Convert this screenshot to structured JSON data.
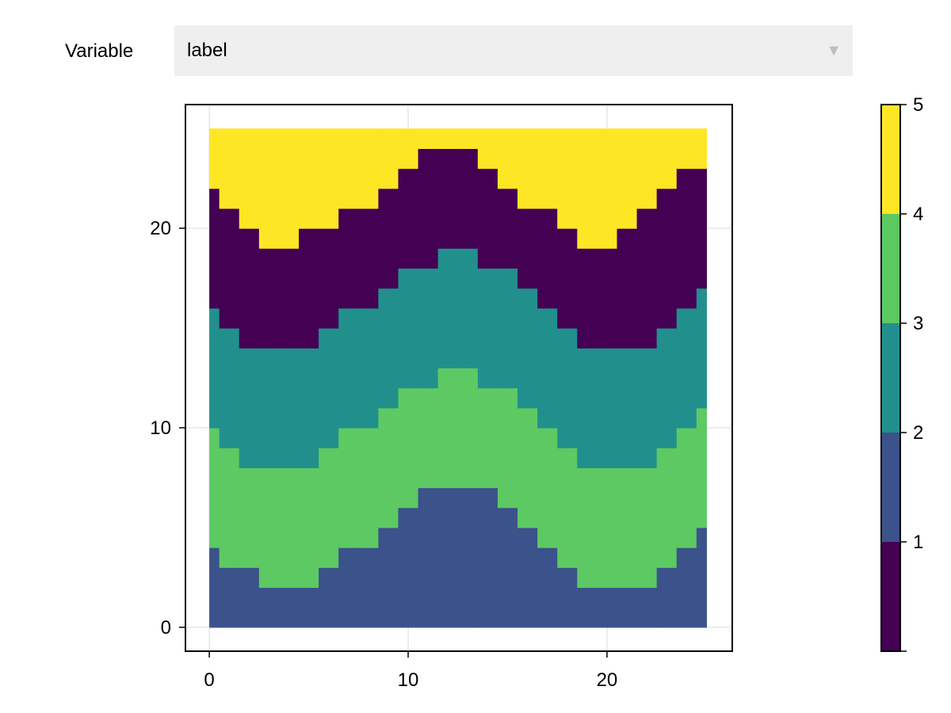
{
  "control": {
    "label": "Variable",
    "selected": "label",
    "arrow_icon": "▼"
  },
  "chart_data": {
    "type": "heatmap",
    "title": "",
    "xlabel": "",
    "ylabel": "",
    "xlim": [
      -1.2,
      26.3
    ],
    "ylim": [
      -1.2,
      26.2
    ],
    "xticks": [
      0,
      10,
      20
    ],
    "yticks": [
      0,
      10,
      20
    ],
    "grid": true,
    "x_extent": [
      0,
      25
    ],
    "y_extent": [
      0,
      25
    ],
    "boundaries": [
      {
        "label_below": 2,
        "label_above": 4,
        "values": [
          4,
          3,
          3,
          2,
          2,
          2,
          3,
          4,
          4,
          5,
          6,
          7,
          7,
          7,
          7,
          6,
          5,
          4,
          3,
          2,
          2,
          2,
          2,
          3,
          4,
          5
        ]
      },
      {
        "label_below": 4,
        "label_above": 3,
        "values": [
          10,
          9,
          8,
          8,
          8,
          8,
          9,
          10,
          10,
          11,
          12,
          12,
          13,
          13,
          12,
          12,
          11,
          10,
          9,
          8,
          8,
          8,
          8,
          9,
          10,
          11
        ]
      },
      {
        "label_below": 3,
        "label_above": 1,
        "values": [
          16,
          15,
          14,
          14,
          14,
          14,
          15,
          16,
          16,
          17,
          18,
          18,
          19,
          19,
          18,
          18,
          17,
          16,
          15,
          14,
          14,
          14,
          14,
          15,
          16,
          17
        ]
      },
      {
        "label_below": 1,
        "label_above": 5,
        "values": [
          22,
          21,
          20,
          19,
          19,
          20,
          20,
          21,
          21,
          22,
          23,
          24,
          24,
          24,
          23,
          22,
          21,
          21,
          20,
          19,
          19,
          20,
          21,
          22,
          23,
          23
        ]
      }
    ],
    "colorbar": {
      "ticks": [
        1,
        2,
        3,
        4,
        5
      ],
      "range": [
        0,
        5
      ],
      "colors": [
        "#440154",
        "#3b528b",
        "#21908d",
        "#5dc963",
        "#fde725"
      ]
    }
  }
}
